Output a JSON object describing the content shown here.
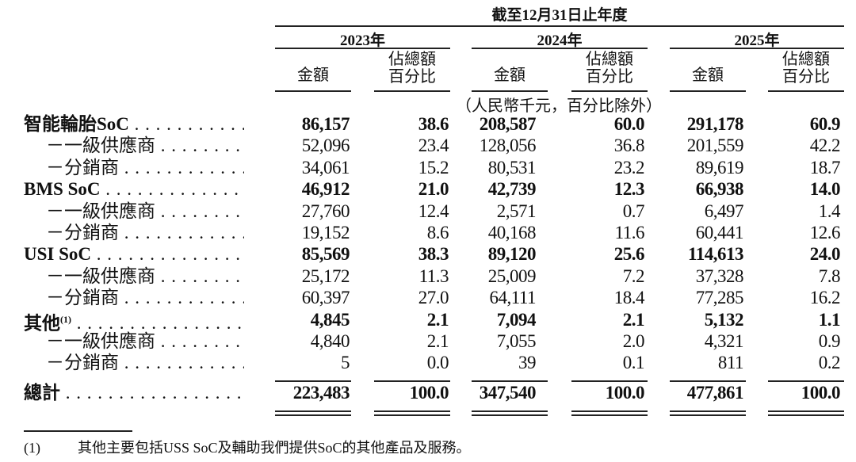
{
  "header": {
    "title": "截至12月31日止年度",
    "years": [
      "2023年",
      "2024年",
      "2025年"
    ],
    "amount_label": "金額",
    "pct_label_line1": "佔總額",
    "pct_label_line2": "百分比",
    "unit_note": "（人民幣千元，百分比除外）"
  },
  "rows": [
    {
      "label": "智能輪胎SoC",
      "bold": true,
      "values": [
        "86,157",
        "38.6",
        "208,587",
        "60.0",
        "291,178",
        "60.9"
      ]
    },
    {
      "label": "－一級供應商",
      "bold": false,
      "values": [
        "52,096",
        "23.4",
        "128,056",
        "36.8",
        "201,559",
        "42.2"
      ]
    },
    {
      "label": "－分銷商",
      "bold": false,
      "values": [
        "34,061",
        "15.2",
        "80,531",
        "23.2",
        "89,619",
        "18.7"
      ]
    },
    {
      "label": "BMS SoC",
      "bold": true,
      "values": [
        "46,912",
        "21.0",
        "42,739",
        "12.3",
        "66,938",
        "14.0"
      ]
    },
    {
      "label": "－一級供應商",
      "bold": false,
      "values": [
        "27,760",
        "12.4",
        "2,571",
        "0.7",
        "6,497",
        "1.4"
      ]
    },
    {
      "label": "－分銷商",
      "bold": false,
      "values": [
        "19,152",
        "8.6",
        "40,168",
        "11.6",
        "60,441",
        "12.6"
      ]
    },
    {
      "label": "USI SoC",
      "bold": true,
      "values": [
        "85,569",
        "38.3",
        "89,120",
        "25.6",
        "114,613",
        "24.0"
      ]
    },
    {
      "label": "－一級供應商",
      "bold": false,
      "values": [
        "25,172",
        "11.3",
        "25,009",
        "7.2",
        "37,328",
        "7.8"
      ]
    },
    {
      "label": "－分銷商",
      "bold": false,
      "values": [
        "60,397",
        "27.0",
        "64,111",
        "18.4",
        "77,285",
        "16.2"
      ]
    },
    {
      "label": "其他",
      "sup": "(1)",
      "bold": true,
      "values": [
        "4,845",
        "2.1",
        "7,094",
        "2.1",
        "5,132",
        "1.1"
      ]
    },
    {
      "label": "－一級供應商",
      "bold": false,
      "values": [
        "4,840",
        "2.1",
        "7,055",
        "2.0",
        "4,321",
        "0.9"
      ]
    },
    {
      "label": "－分銷商",
      "bold": false,
      "values": [
        "5",
        "0.0",
        "39",
        "0.1",
        "811",
        "0.2"
      ]
    }
  ],
  "total": {
    "label": "總計",
    "values": [
      "223,483",
      "100.0",
      "347,540",
      "100.0",
      "477,861",
      "100.0"
    ]
  },
  "footnote": {
    "marker": "(1)",
    "text": "其他主要包括USS SoC及輔助我們提供SoC的其他產品及服務。"
  }
}
